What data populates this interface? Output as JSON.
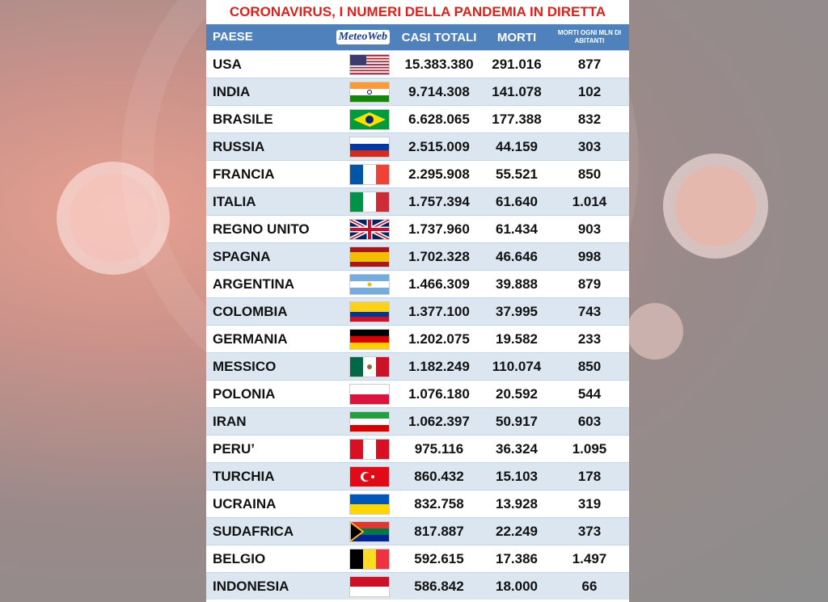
{
  "title": "CORONAVIRUS, I NUMERI DELLA PANDEMIA IN DIRETTA",
  "header": {
    "columns": [
      "PAESE",
      "CASI TOTALI",
      "MORTI",
      "MORTI OGNI MLN DI ABITANTI"
    ],
    "logo": "MeteoWeb"
  },
  "table": {
    "rows": [
      [
        "USA",
        "15.383.380",
        "291.016",
        "877"
      ],
      [
        "INDIA",
        "9.714.308",
        "141.078",
        "102"
      ],
      [
        "BRASILE",
        "6.628.065",
        "177.388",
        "832"
      ],
      [
        "RUSSIA",
        "2.515.009",
        "44.159",
        "303"
      ],
      [
        "FRANCIA",
        "2.295.908",
        "55.521",
        "850"
      ],
      [
        "ITALIA",
        "1.757.394",
        "61.640",
        "1.014"
      ],
      [
        "REGNO UNITO",
        "1.737.960",
        "61.434",
        "903"
      ],
      [
        "SPAGNA",
        "1.702.328",
        "46.646",
        "998"
      ],
      [
        "ARGENTINA",
        "1.466.309",
        "39.888",
        "879"
      ],
      [
        "COLOMBIA",
        "1.377.100",
        "37.995",
        "743"
      ],
      [
        "GERMANIA",
        "1.202.075",
        "19.582",
        "233"
      ],
      [
        "MESSICO",
        "1.182.249",
        "110.074",
        "850"
      ],
      [
        "POLONIA",
        "1.076.180",
        "20.592",
        "544"
      ],
      [
        "IRAN",
        "1.062.397",
        "50.917",
        "603"
      ],
      [
        "PERU’",
        "975.116",
        "36.324",
        "1.095"
      ],
      [
        "TURCHIA",
        "860.432",
        "15.103",
        "178"
      ],
      [
        "UCRAINA",
        "832.758",
        "13.928",
        "319"
      ],
      [
        "SUDAFRICA",
        "817.887",
        "22.249",
        "373"
      ],
      [
        "BELGIO",
        "592.615",
        "17.386",
        "1.497"
      ],
      [
        "INDONESIA",
        "586.842",
        "18.000",
        "66"
      ]
    ]
  }
}
